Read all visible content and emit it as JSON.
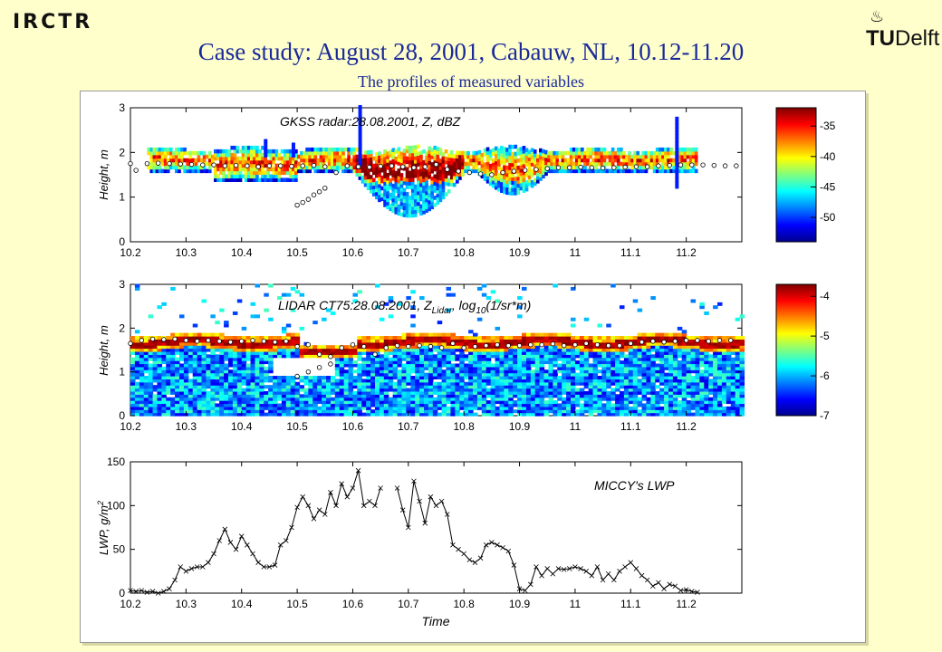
{
  "header": {
    "title": "Case study: August 28, 2001, Cabauw, NL, 10.12-11.20",
    "subtitle": "The profiles of measured variables",
    "logo_left": "IRCTR",
    "logo_right_tu": "TU",
    "logo_right_delft": "Delft"
  },
  "chart_data": [
    {
      "type": "heatmap",
      "title": "GKSS radar:28.08.2001, Z, dBZ",
      "xlabel": "",
      "ylabel": "Height, m",
      "xlim": [
        10.2,
        11.3
      ],
      "ylim": [
        0,
        3
      ],
      "xticks": [
        "10.2",
        "10.3",
        "10.4",
        "10.5",
        "10.6",
        "10.7",
        "10.8",
        "10.9",
        "11",
        "11.1",
        "11.2"
      ],
      "yticks": [
        "0",
        "1",
        "2",
        "3"
      ],
      "colorbar": {
        "range": [
          -54,
          -32
        ],
        "ticks": [
          "-35",
          "-40",
          "-45",
          "-50"
        ]
      },
      "cloud_base_markers": [
        [
          10.2,
          1.75
        ],
        [
          10.21,
          1.6
        ],
        [
          10.23,
          1.75
        ],
        [
          10.25,
          1.76
        ],
        [
          10.27,
          1.75
        ],
        [
          10.29,
          1.74
        ],
        [
          10.31,
          1.73
        ],
        [
          10.33,
          1.72
        ],
        [
          10.35,
          1.72
        ],
        [
          10.37,
          1.7
        ],
        [
          10.39,
          1.71
        ],
        [
          10.41,
          1.7
        ],
        [
          10.43,
          1.68
        ],
        [
          10.45,
          1.7
        ],
        [
          10.47,
          1.7
        ],
        [
          10.49,
          1.69
        ],
        [
          10.51,
          1.7
        ],
        [
          10.53,
          1.71
        ],
        [
          10.55,
          1.68
        ],
        [
          10.57,
          1.55
        ],
        [
          10.59,
          1.7
        ],
        [
          10.61,
          1.68
        ],
        [
          10.63,
          1.67
        ],
        [
          10.65,
          1.69
        ],
        [
          10.67,
          1.7
        ],
        [
          10.69,
          1.68
        ],
        [
          10.71,
          1.66
        ],
        [
          10.73,
          1.68
        ],
        [
          10.75,
          1.73
        ],
        [
          10.77,
          1.62
        ],
        [
          10.79,
          1.58
        ],
        [
          10.81,
          1.55
        ],
        [
          10.83,
          1.52
        ],
        [
          10.85,
          1.5
        ],
        [
          10.87,
          1.55
        ],
        [
          10.89,
          1.58
        ],
        [
          10.91,
          1.6
        ],
        [
          10.93,
          1.62
        ],
        [
          10.95,
          1.64
        ],
        [
          10.97,
          1.66
        ],
        [
          10.99,
          1.66
        ],
        [
          11.01,
          1.67
        ],
        [
          11.03,
          1.66
        ],
        [
          11.05,
          1.65
        ],
        [
          11.07,
          1.66
        ],
        [
          11.09,
          1.67
        ],
        [
          11.11,
          1.68
        ],
        [
          11.13,
          1.68
        ],
        [
          11.15,
          1.7
        ],
        [
          11.17,
          1.71
        ],
        [
          11.19,
          1.72
        ],
        [
          11.21,
          1.72
        ],
        [
          11.23,
          1.72
        ],
        [
          11.25,
          1.71
        ],
        [
          11.27,
          1.7
        ],
        [
          11.29,
          1.7
        ],
        [
          10.5,
          0.82
        ],
        [
          10.51,
          0.88
        ],
        [
          10.52,
          0.95
        ],
        [
          10.53,
          1.05
        ],
        [
          10.54,
          1.12
        ],
        [
          10.55,
          1.2
        ]
      ]
    },
    {
      "type": "heatmap",
      "title": "LIDAR CT75:28.08.2001, Z",
      "title_sub": "Lidar",
      "title_tail": ", log",
      "title_sub2": "10",
      "title_end": "(1/sr*m)",
      "xlabel": "",
      "ylabel": "Height, m",
      "xlim": [
        10.2,
        11.3
      ],
      "ylim": [
        0,
        3
      ],
      "xticks": [
        "10.2",
        "10.3",
        "10.4",
        "10.5",
        "10.6",
        "10.7",
        "10.8",
        "10.9",
        "11",
        "11.1",
        "11.2"
      ],
      "yticks": [
        "0",
        "1",
        "2",
        "3"
      ],
      "colorbar": {
        "range": [
          -7,
          -3.7
        ],
        "ticks": [
          "-4",
          "-5",
          "-6",
          "-7"
        ]
      },
      "cloud_base_markers": [
        [
          10.2,
          1.65
        ],
        [
          10.22,
          1.72
        ],
        [
          10.24,
          1.75
        ],
        [
          10.26,
          1.74
        ],
        [
          10.28,
          1.75
        ],
        [
          10.3,
          1.72
        ],
        [
          10.32,
          1.7
        ],
        [
          10.34,
          1.72
        ],
        [
          10.36,
          1.7
        ],
        [
          10.38,
          1.68
        ],
        [
          10.4,
          1.7
        ],
        [
          10.42,
          1.72
        ],
        [
          10.44,
          1.7
        ],
        [
          10.46,
          1.68
        ],
        [
          10.48,
          1.7
        ],
        [
          10.5,
          1.58
        ],
        [
          10.52,
          1.62
        ],
        [
          10.54,
          1.4
        ],
        [
          10.56,
          1.35
        ],
        [
          10.58,
          1.55
        ],
        [
          10.6,
          1.62
        ],
        [
          10.62,
          1.58
        ],
        [
          10.64,
          1.4
        ],
        [
          10.66,
          1.55
        ],
        [
          10.68,
          1.6
        ],
        [
          10.7,
          1.58
        ],
        [
          10.72,
          1.6
        ],
        [
          10.74,
          1.58
        ],
        [
          10.76,
          1.55
        ],
        [
          10.78,
          1.65
        ],
        [
          10.8,
          1.55
        ],
        [
          10.82,
          1.58
        ],
        [
          10.84,
          1.6
        ],
        [
          10.86,
          1.62
        ],
        [
          10.88,
          1.6
        ],
        [
          10.9,
          1.6
        ],
        [
          10.92,
          1.62
        ],
        [
          10.94,
          1.62
        ],
        [
          10.96,
          1.64
        ],
        [
          10.98,
          1.6
        ],
        [
          11.0,
          1.62
        ],
        [
          11.02,
          1.65
        ],
        [
          11.04,
          1.62
        ],
        [
          11.06,
          1.6
        ],
        [
          11.08,
          1.6
        ],
        [
          11.1,
          1.65
        ],
        [
          11.12,
          1.68
        ],
        [
          11.14,
          1.7
        ],
        [
          11.16,
          1.68
        ],
        [
          11.18,
          1.7
        ],
        [
          11.2,
          1.72
        ],
        [
          11.22,
          1.72
        ],
        [
          11.24,
          1.7
        ],
        [
          11.26,
          1.72
        ],
        [
          11.28,
          1.72
        ],
        [
          10.5,
          0.9
        ],
        [
          10.52,
          1.0
        ],
        [
          10.54,
          1.1
        ],
        [
          10.56,
          1.18
        ]
      ]
    },
    {
      "type": "line",
      "title": "MICCY's LWP",
      "xlabel": "Time",
      "ylabel": "LWP, g/m",
      "ylabel_sup": "2",
      "xlim": [
        10.2,
        11.3
      ],
      "ylim": [
        0,
        150
      ],
      "xticks": [
        "10.2",
        "10.3",
        "10.4",
        "10.5",
        "10.6",
        "10.7",
        "10.8",
        "10.9",
        "11",
        "11.1",
        "11.2"
      ],
      "yticks": [
        "0",
        "50",
        "100",
        "150"
      ],
      "series": [
        {
          "x": [
            10.2,
            10.21,
            10.22,
            10.23,
            10.24,
            10.25,
            10.26,
            10.27,
            10.28,
            10.29,
            10.3,
            10.31,
            10.32,
            10.33,
            10.34,
            10.35,
            10.36,
            10.37,
            10.38,
            10.39,
            10.4,
            10.41,
            10.42,
            10.43,
            10.44,
            10.45,
            10.46,
            10.47,
            10.48,
            10.49,
            10.5,
            10.51,
            10.52,
            10.53,
            10.54,
            10.55,
            10.56,
            10.57,
            10.58,
            10.59,
            10.6,
            10.61,
            10.62,
            10.63,
            10.64,
            10.65
          ],
          "y": [
            3,
            2,
            3,
            1,
            2,
            0,
            2,
            5,
            15,
            30,
            25,
            28,
            30,
            30,
            35,
            45,
            60,
            73,
            58,
            50,
            65,
            55,
            45,
            35,
            30,
            30,
            32,
            55,
            60,
            75,
            98,
            110,
            100,
            85,
            95,
            90,
            115,
            100,
            125,
            110,
            120,
            140,
            100,
            105,
            100,
            120
          ]
        },
        {
          "x": [
            10.68,
            10.69,
            10.7,
            10.71,
            10.72,
            10.73,
            10.74,
            10.75,
            10.76,
            10.77,
            10.78,
            10.79,
            10.8,
            10.81,
            10.82,
            10.83,
            10.84,
            10.85,
            10.86,
            10.87,
            10.88,
            10.89,
            10.9,
            10.91,
            10.92,
            10.93,
            10.94,
            10.95,
            10.96,
            10.97,
            10.98,
            10.99,
            11.0,
            11.01,
            11.02,
            11.03,
            11.04,
            11.05,
            11.06,
            11.07,
            11.08,
            11.09,
            11.1,
            11.11,
            11.12,
            11.13,
            11.14,
            11.15,
            11.16,
            11.17,
            11.18,
            11.19,
            11.2,
            11.21,
            11.22
          ],
          "y": [
            120,
            95,
            75,
            128,
            105,
            80,
            110,
            100,
            105,
            90,
            55,
            50,
            45,
            38,
            35,
            40,
            55,
            58,
            55,
            52,
            48,
            32,
            5,
            3,
            10,
            30,
            20,
            28,
            22,
            28,
            27,
            28,
            30,
            28,
            25,
            20,
            30,
            15,
            22,
            15,
            25,
            30,
            35,
            28,
            20,
            15,
            8,
            12,
            5,
            10,
            8,
            3,
            4,
            2,
            1
          ]
        }
      ]
    }
  ]
}
